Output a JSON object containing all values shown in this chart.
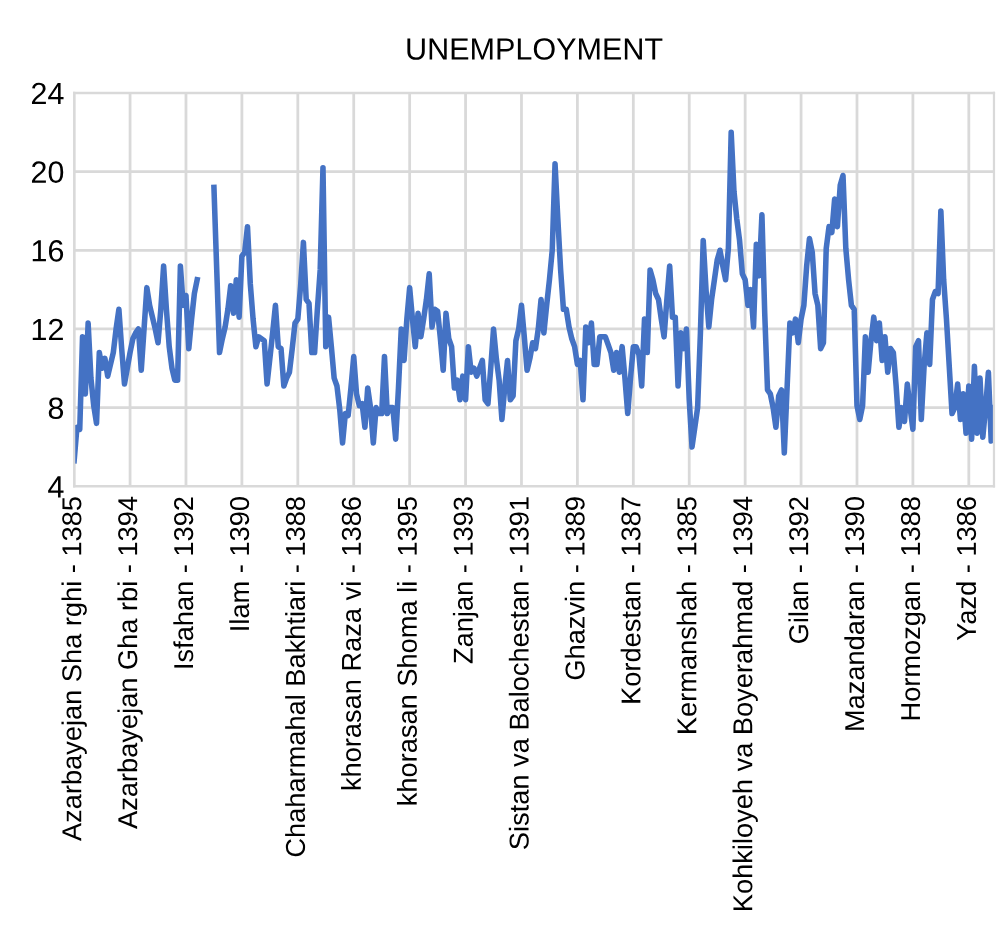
{
  "chart_data": {
    "type": "line",
    "title": "UNEMPLOYMENT",
    "categories": [
      "Azarbayejan Sha rghi - 1385",
      null,
      null,
      null,
      null,
      null,
      null,
      null,
      null,
      null,
      null,
      null,
      null,
      null,
      null,
      null,
      null,
      null,
      null,
      null,
      "Azarbayejan Gha rbi - 1394",
      null,
      null,
      null,
      null,
      null,
      null,
      null,
      null,
      null,
      null,
      null,
      null,
      null,
      null,
      null,
      null,
      null,
      null,
      null,
      "Isfahan - 1392",
      null,
      null,
      null,
      null,
      null,
      null,
      null,
      null,
      null,
      null,
      null,
      null,
      null,
      null,
      null,
      null,
      null,
      null,
      null,
      "Ilam - 1390",
      null,
      null,
      null,
      null,
      null,
      null,
      null,
      null,
      null,
      null,
      null,
      null,
      null,
      null,
      null,
      null,
      null,
      null,
      null,
      "Chaharmahal Bakhtiari - 1388",
      null,
      null,
      null,
      null,
      null,
      null,
      null,
      null,
      null,
      null,
      null,
      null,
      null,
      null,
      null,
      null,
      null,
      null,
      null,
      "khorasan Raza vi - 1386",
      null,
      null,
      null,
      null,
      null,
      null,
      null,
      null,
      null,
      null,
      null,
      null,
      null,
      null,
      null,
      null,
      null,
      null,
      null,
      "khorasan Shoma li - 1395",
      null,
      null,
      null,
      null,
      null,
      null,
      null,
      null,
      null,
      null,
      null,
      null,
      null,
      null,
      null,
      null,
      null,
      null,
      null,
      "Zanjan - 1393",
      null,
      null,
      null,
      null,
      null,
      null,
      null,
      null,
      null,
      null,
      null,
      null,
      null,
      null,
      null,
      null,
      null,
      null,
      null,
      "Sistan va Balochestan - 1391",
      null,
      null,
      null,
      null,
      null,
      null,
      null,
      null,
      null,
      null,
      null,
      null,
      null,
      null,
      null,
      null,
      null,
      null,
      null,
      "Ghazvin - 1389",
      null,
      null,
      null,
      null,
      null,
      null,
      null,
      null,
      null,
      null,
      null,
      null,
      null,
      null,
      null,
      null,
      null,
      null,
      null,
      "Kordestan - 1387",
      null,
      null,
      null,
      null,
      null,
      null,
      null,
      null,
      null,
      null,
      null,
      null,
      null,
      null,
      null,
      null,
      null,
      null,
      null,
      "Kermanshah - 1385",
      null,
      null,
      null,
      null,
      null,
      null,
      null,
      null,
      null,
      null,
      null,
      null,
      null,
      null,
      null,
      null,
      null,
      null,
      null,
      "Kohkiloyeh va Boyerahmad - 1394",
      null,
      null,
      null,
      null,
      null,
      null,
      null,
      null,
      null,
      null,
      null,
      null,
      null,
      null,
      null,
      null,
      null,
      null,
      null,
      "Gilan - 1392",
      null,
      null,
      null,
      null,
      null,
      null,
      null,
      null,
      null,
      null,
      null,
      null,
      null,
      null,
      null,
      null,
      null,
      null,
      null,
      "Mazandaran - 1390",
      null,
      null,
      null,
      null,
      null,
      null,
      null,
      null,
      null,
      null,
      null,
      null,
      null,
      null,
      null,
      null,
      null,
      null,
      null,
      "Hormozgan - 1388",
      null,
      null,
      null,
      null,
      null,
      null,
      null,
      null,
      null,
      null,
      null,
      null,
      null,
      null,
      null,
      null,
      null,
      null,
      null,
      "Yazd - 1386",
      null,
      null,
      null,
      null,
      null,
      null,
      null,
      null,
      null
    ],
    "series": [
      {
        "color": "#4472c4",
        "values": [
          5.3,
          7.0,
          6.9,
          11.6,
          8.7,
          12.3,
          9.5,
          8.1,
          7.2,
          10.8,
          10.0,
          10.5,
          9.6,
          10.2,
          10.8,
          12.0,
          13.0,
          11.0,
          9.2,
          10.0,
          10.8,
          11.5,
          11.8,
          12.0,
          9.9,
          12.0,
          14.1,
          13.2,
          12.6,
          12.0,
          11.3,
          13.0,
          15.2,
          13.0,
          11.1,
          10.0,
          9.4,
          9.4,
          15.2,
          13.2,
          13.7,
          11.0,
          12.5,
          13.8,
          14.5,
          null,
          null,
          null,
          null,
          null,
          19.2,
          15.0,
          10.8,
          11.5,
          12.1,
          13.0,
          14.2,
          12.8,
          14.5,
          12.6,
          15.7,
          15.9,
          17.2,
          14.3,
          12.5,
          11.1,
          11.6,
          11.5,
          11.4,
          9.2,
          10.5,
          11.8,
          13.2,
          11.1,
          11.0,
          9.1,
          9.5,
          9.8,
          11.0,
          12.3,
          12.5,
          14.2,
          16.4,
          13.5,
          13.3,
          10.8,
          10.8,
          13.0,
          15.0,
          20.2,
          11.1,
          12.6,
          11.1,
          9.5,
          9.1,
          7.9,
          6.2,
          7.7,
          7.6,
          9.0,
          10.6,
          8.7,
          8.1,
          8.2,
          7.0,
          9.0,
          8.0,
          6.2,
          8.0,
          7.7,
          7.7,
          10.6,
          7.7,
          8.0,
          8.0,
          6.4,
          9.0,
          12.0,
          10.4,
          12.5,
          14.1,
          12.5,
          11.1,
          12.8,
          11.6,
          12.5,
          13.5,
          14.8,
          12.1,
          13.0,
          12.9,
          11.5,
          9.9,
          12.8,
          11.5,
          11.1,
          9.0,
          9.4,
          8.4,
          9.6,
          8.4,
          11.1,
          9.8,
          10.0,
          9.6,
          10.0,
          10.4,
          8.4,
          8.2,
          10.0,
          12.0,
          10.5,
          9.4,
          7.4,
          9.0,
          10.4,
          8.4,
          8.6,
          11.4,
          12.0,
          13.2,
          11.6,
          9.9,
          10.5,
          11.3,
          11.0,
          12.0,
          13.5,
          11.8,
          13.2,
          14.5,
          16.0,
          20.4,
          17.6,
          15.0,
          13.0,
          13.0,
          12.1,
          11.5,
          11.1,
          10.2,
          10.4,
          8.4,
          12.1,
          11.3,
          12.3,
          10.2,
          10.2,
          11.6,
          11.6,
          11.6,
          11.2,
          10.8,
          9.9,
          10.8,
          9.8,
          11.1,
          9.5,
          7.7,
          9.5,
          11.1,
          11.1,
          10.7,
          9.1,
          12.5,
          10.8,
          15.0,
          14.5,
          13.8,
          13.5,
          12.5,
          11.6,
          13.5,
          15.2,
          12.6,
          12.6,
          9.1,
          11.8,
          11.0,
          12.0,
          8.4,
          6.0,
          7.0,
          8.0,
          11.8,
          16.5,
          14.0,
          12.1,
          13.5,
          14.5,
          15.5,
          16.0,
          15.2,
          14.5,
          16.1,
          22.0,
          19.0,
          17.6,
          16.5,
          14.8,
          14.5,
          13.2,
          14.0,
          12.1,
          16.3,
          14.7,
          17.8,
          12.8,
          8.9,
          8.7,
          8.0,
          7.0,
          8.6,
          8.9,
          5.7,
          9.0,
          12.3,
          11.8,
          12.5,
          11.3,
          12.5,
          13.2,
          15.2,
          16.6,
          15.9,
          13.8,
          13.2,
          11.0,
          11.3,
          16.1,
          17.2,
          16.9,
          18.6,
          17.2,
          19.3,
          19.8,
          16.1,
          14.5,
          13.2,
          13.0,
          8.1,
          7.4,
          8.1,
          11.6,
          9.8,
          11.4,
          12.6,
          11.4,
          12.3,
          10.4,
          11.6,
          9.8,
          11.0,
          10.8,
          9.1,
          7.0,
          8.0,
          7.3,
          9.2,
          8.0,
          6.9,
          11.1,
          11.4,
          7.4,
          10.1,
          11.8,
          10.2,
          13.5,
          13.9,
          13.8,
          18.0,
          14.5,
          12.5,
          10.1,
          7.7,
          8.0,
          9.2,
          7.4,
          8.7,
          6.7,
          9.1,
          6.4,
          10.1,
          6.7,
          9.5,
          6.5,
          8.0,
          9.8,
          6.3,
          8.0
        ]
      }
    ],
    "ylim": [
      4,
      24
    ],
    "yticks": [
      4,
      8,
      12,
      16,
      20,
      24
    ],
    "grid": true,
    "marker": "none",
    "line_style": "solid"
  }
}
